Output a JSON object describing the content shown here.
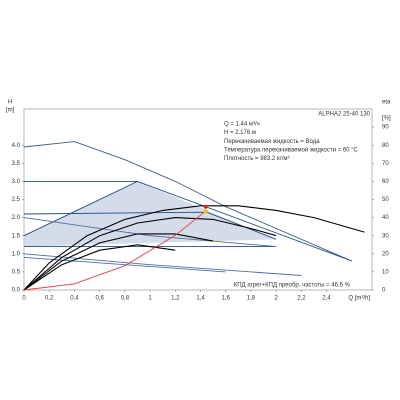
{
  "chart_data": {
    "type": "line",
    "title": "ALPHA2 25-40 130",
    "ylabel": "H",
    "yunit": "[m]",
    "y2label": "eta",
    "y2unit": "[%]",
    "xlabel": "Q [m³/h]",
    "annotations": [
      "Q = 1.44 м³/ч",
      "H = 2.176 м",
      "Перекачиваемая жидкость = Вода",
      "Температура перекачиваемой жидкости = 60 °C",
      "Плотность = 983.2 кг/м³"
    ],
    "footnote": "КПД агрег+КПД преобр. частоты = 46.6 %",
    "xlim": [
      0,
      2.76
    ],
    "xticks": [
      0,
      {
        "value": 0.2,
        "label": "0,2"
      },
      {
        "value": 0.4,
        "label": "0,4"
      },
      {
        "value": 0.6,
        "label": "0,6"
      },
      {
        "value": 0.8,
        "label": "0,8"
      },
      {
        "value": 1,
        "label": "1"
      },
      {
        "value": 1.2,
        "label": "1,2"
      },
      {
        "value": 1.4,
        "label": "1,4"
      },
      {
        "value": 1.6,
        "label": "1,6"
      },
      {
        "value": 1.8,
        "label": "1,8"
      },
      {
        "value": 2,
        "label": "2"
      },
      {
        "value": 2.2,
        "label": "2,2"
      },
      {
        "value": 2.4,
        "label": "2,4"
      }
    ],
    "ylim": [
      0,
      5
    ],
    "yticks": [
      {
        "value": 0,
        "label": "0.0"
      },
      {
        "value": 0.5,
        "label": "0.5"
      },
      {
        "value": 1,
        "label": "1.0"
      },
      {
        "value": 1.5,
        "label": "1.5"
      },
      {
        "value": 2,
        "label": "2.0"
      },
      {
        "value": 2.5,
        "label": "2.5"
      },
      {
        "value": 3,
        "label": "3.0"
      },
      {
        "value": 3.5,
        "label": "3.5"
      },
      {
        "value": 4,
        "label": "4.0"
      }
    ],
    "y2lim": [
      0,
      100
    ],
    "y2ticks": [
      0,
      10,
      20,
      30,
      40,
      50,
      60,
      70,
      80,
      90
    ],
    "series": [
      {
        "color": "#c9d3e3",
        "fill": true,
        "x": [
          0,
          0.9,
          2.0,
          0
        ],
        "values": [
          1.5,
          3.0,
          1.4,
          1.2
        ]
      },
      {
        "color": "#3b5f8f",
        "x": [
          0,
          0.4,
          0.8,
          1.2,
          1.6,
          2.0,
          2.4,
          2.6
        ],
        "values": [
          3.95,
          4.1,
          3.6,
          3.0,
          2.3,
          1.7,
          1.1,
          0.8
        ]
      },
      {
        "color": "#1f4e8c",
        "x": [
          0,
          0.9,
          2.6
        ],
        "values": [
          3.0,
          3.0,
          0.8
        ]
      },
      {
        "color": "#1f4e8c",
        "x": [
          0,
          0.9
        ],
        "values": [
          1.5,
          3.0
        ]
      },
      {
        "color": "#1f4e8c",
        "x": [
          0,
          1.45,
          2.0
        ],
        "values": [
          2.1,
          2.15,
          1.4
        ]
      },
      {
        "color": "#1f4e8c",
        "x": [
          0,
          2.0
        ],
        "values": [
          1.2,
          1.2
        ]
      },
      {
        "color": "#4a6fa5",
        "x": [
          0,
          1.0,
          2.2
        ],
        "values": [
          1.0,
          0.7,
          0.4
        ]
      },
      {
        "color": "#4a6fa5",
        "x": [
          0,
          0.8,
          1.6
        ],
        "values": [
          0.9,
          0.7,
          0.5
        ]
      },
      {
        "color": "#4a6fa5",
        "x": [
          0,
          1.0,
          2.0
        ],
        "values": [
          2.0,
          1.5,
          1.2
        ]
      },
      {
        "color": "#000000",
        "axis": "y2",
        "x": [
          0,
          0.2,
          0.5,
          0.8,
          1.1,
          1.4,
          1.7,
          2.0,
          2.3,
          2.6,
          2.7
        ],
        "values": [
          0,
          15,
          30,
          39,
          44,
          46.5,
          46.5,
          44,
          40,
          34,
          32
        ]
      },
      {
        "color": "#000000",
        "axis": "y2",
        "x": [
          0,
          0.3,
          0.6,
          0.9,
          1.2,
          1.5,
          1.8,
          2.0
        ],
        "values": [
          0,
          18,
          30,
          37,
          40,
          39,
          34,
          30
        ]
      },
      {
        "color": "#000000",
        "axis": "y2",
        "x": [
          0,
          0.3,
          0.6,
          0.9,
          1.2,
          1.5
        ],
        "values": [
          0,
          16,
          26,
          31,
          31,
          27
        ]
      },
      {
        "color": "#000000",
        "axis": "y2",
        "x": [
          0,
          0.3,
          0.6,
          0.9,
          1.2
        ],
        "values": [
          0,
          14,
          22,
          25,
          22
        ]
      },
      {
        "color": "#e04040",
        "x": [
          0,
          0.4,
          0.8,
          1.2,
          1.44
        ],
        "values": [
          0,
          0.17,
          0.67,
          1.51,
          2.18
        ]
      }
    ],
    "points": [
      {
        "color": "#e02020",
        "x": 1.44,
        "value": 2.3
      },
      {
        "color": "#f0c020",
        "x": 1.44,
        "value": 2.176
      }
    ]
  }
}
